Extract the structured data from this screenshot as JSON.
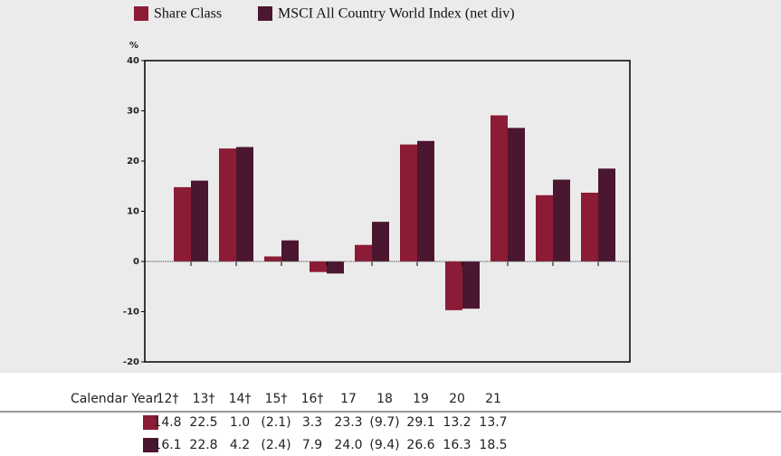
{
  "chart_data": {
    "type": "bar",
    "y_label": "%",
    "table_label": "Calendar Year",
    "categories": [
      "12†",
      "13†",
      "14†",
      "15†",
      "16†",
      "17",
      "18",
      "19",
      "20",
      "21"
    ],
    "series": [
      {
        "name": "Share Class",
        "color": "#8c1b36",
        "values": [
          14.8,
          22.5,
          1.0,
          -2.1,
          3.3,
          23.3,
          -9.7,
          29.1,
          13.2,
          13.7
        ],
        "value_labels": [
          "14.8",
          "22.5",
          "1.0",
          "(2.1)",
          "3.3",
          "23.3",
          "(9.7)",
          "29.1",
          "13.2",
          "13.7"
        ]
      },
      {
        "name": "MSCI All Country World Index (net div)",
        "color": "#4b1630",
        "values": [
          16.1,
          22.8,
          4.2,
          -2.4,
          7.9,
          24.0,
          -9.4,
          26.6,
          16.3,
          18.5
        ],
        "value_labels": [
          "16.1",
          "22.8",
          "4.2",
          "(2.4)",
          "7.9",
          "24.0",
          "(9.4)",
          "26.6",
          "16.3",
          "18.5"
        ]
      }
    ],
    "ylim": [
      -20,
      40
    ],
    "yticks": [
      -20,
      -10,
      0,
      10,
      20,
      30,
      40
    ],
    "grid": false,
    "legend": "top"
  }
}
